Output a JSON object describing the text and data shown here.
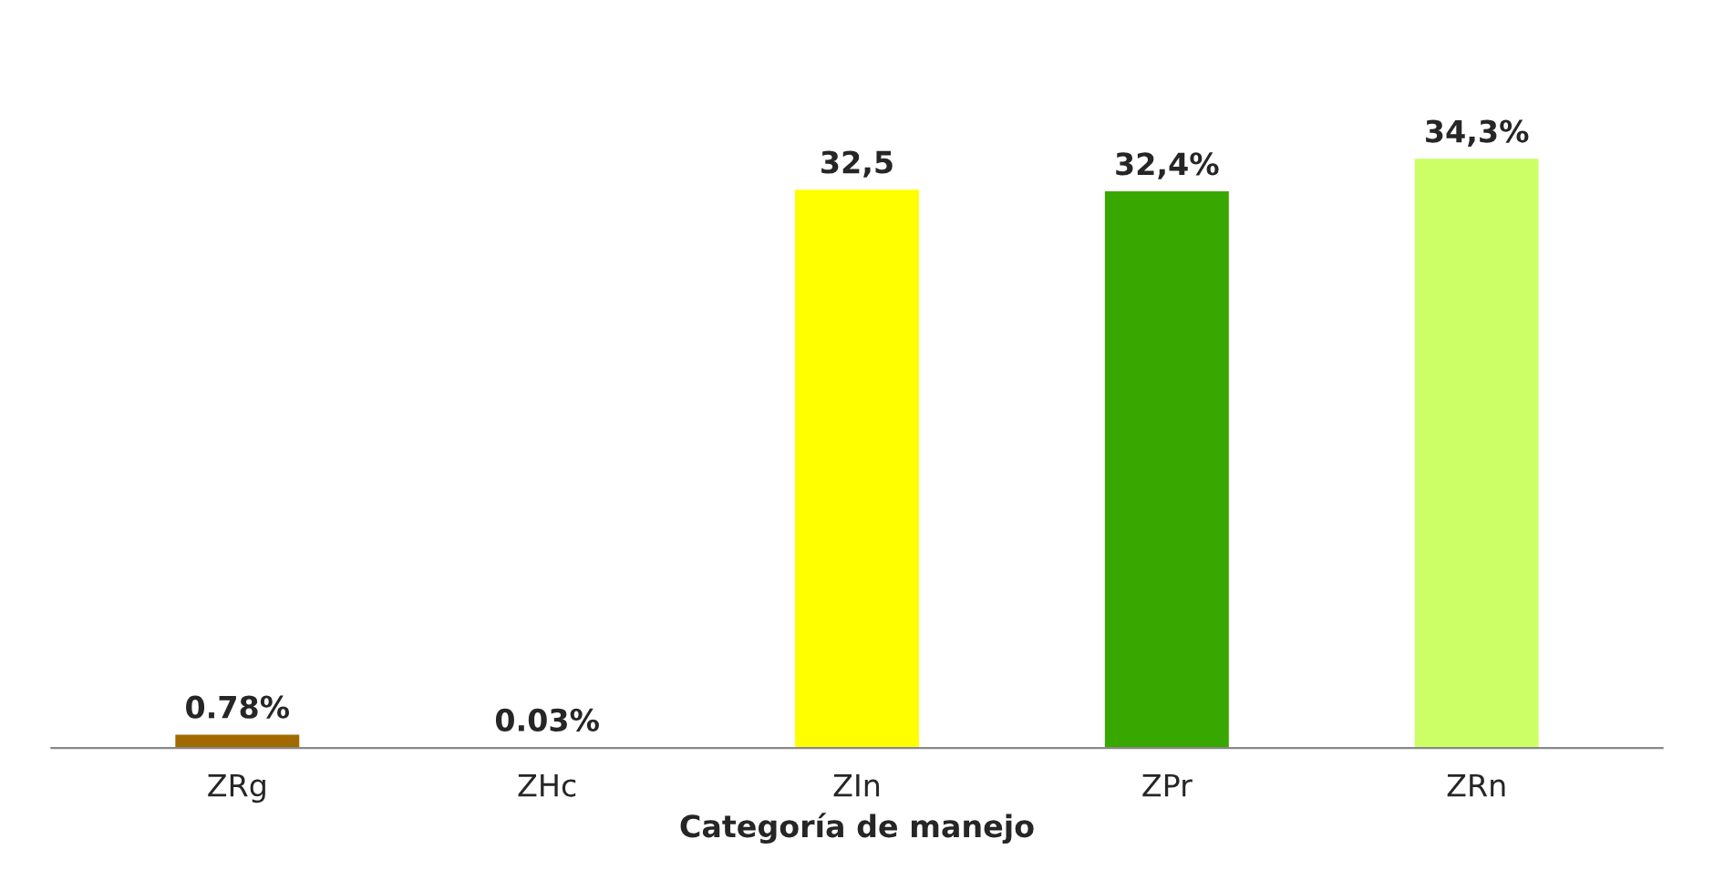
{
  "chart_data": {
    "type": "bar",
    "xlabel": "Categoría de manejo",
    "categories": [
      "ZRg",
      "ZHc",
      "ZIn",
      "ZPr",
      "ZRn"
    ],
    "values": [
      0.78,
      0.03,
      32.5,
      32.4,
      34.3
    ],
    "value_labels": [
      "0.78%",
      "0.03%",
      "32,5",
      "32,4%",
      "34,3%"
    ],
    "colors": [
      "#a06a00",
      "#c8654a",
      "#ffff00",
      "#38a800",
      "#ccff66"
    ],
    "grid": false,
    "legend": false
  }
}
